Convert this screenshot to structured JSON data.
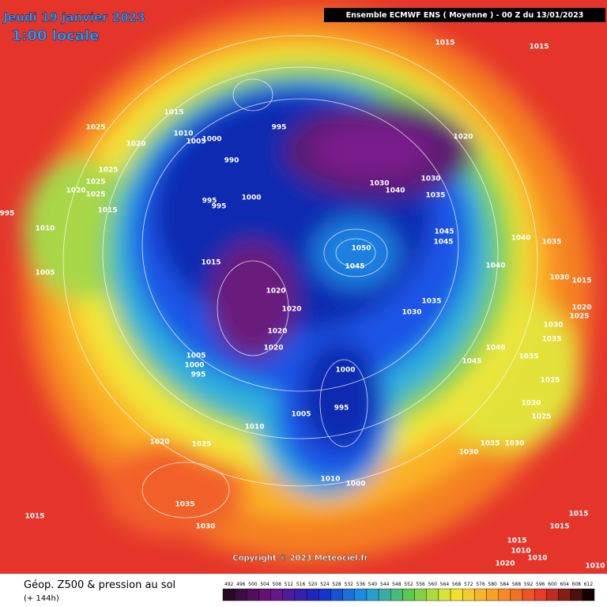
{
  "map": {
    "date": "Jeudi 19 janvier 2023",
    "time": "1:00 locale",
    "header": "Ensemble ECMWF ENS  ( Moyenne )  -  00 Z du 13/01/2023",
    "copyright": "Copyright © 2023 Meteociel.fr",
    "caption": "Géop. Z500 & pression au sol",
    "lead": "(+ 144h)",
    "scale": [
      492,
      496,
      500,
      504,
      508,
      512,
      516,
      520,
      524,
      528,
      532,
      536,
      540,
      544,
      548,
      552,
      556,
      560,
      564,
      568,
      572,
      576,
      580,
      584,
      588,
      592,
      596,
      600,
      604,
      608,
      612
    ],
    "pressure_labels": [
      1015,
      1015,
      1015,
      1025,
      1010,
      1005,
      1000,
      1020,
      995,
      990,
      1025,
      1025,
      1020,
      1025,
      1020,
      1030,
      1030,
      1040,
      1035,
      1015,
      1010,
      1005,
      1015,
      1050,
      1045,
      1045,
      1045,
      1040,
      1035,
      1030,
      1015,
      1020,
      1020,
      1020,
      1020,
      1035,
      1030,
      1040,
      1040,
      1030,
      1035,
      1020,
      1025,
      1045,
      1005,
      1000,
      995,
      1000,
      995,
      1005,
      1010,
      1035,
      1025,
      1030,
      1025,
      1035,
      1030,
      1030,
      1020,
      1025,
      1035,
      1030,
      1015,
      1010,
      1000,
      1015,
      1015,
      1015,
      1010,
      1020,
      1010,
      1010,
      995,
      995,
      1000,
      995
    ]
  }
}
